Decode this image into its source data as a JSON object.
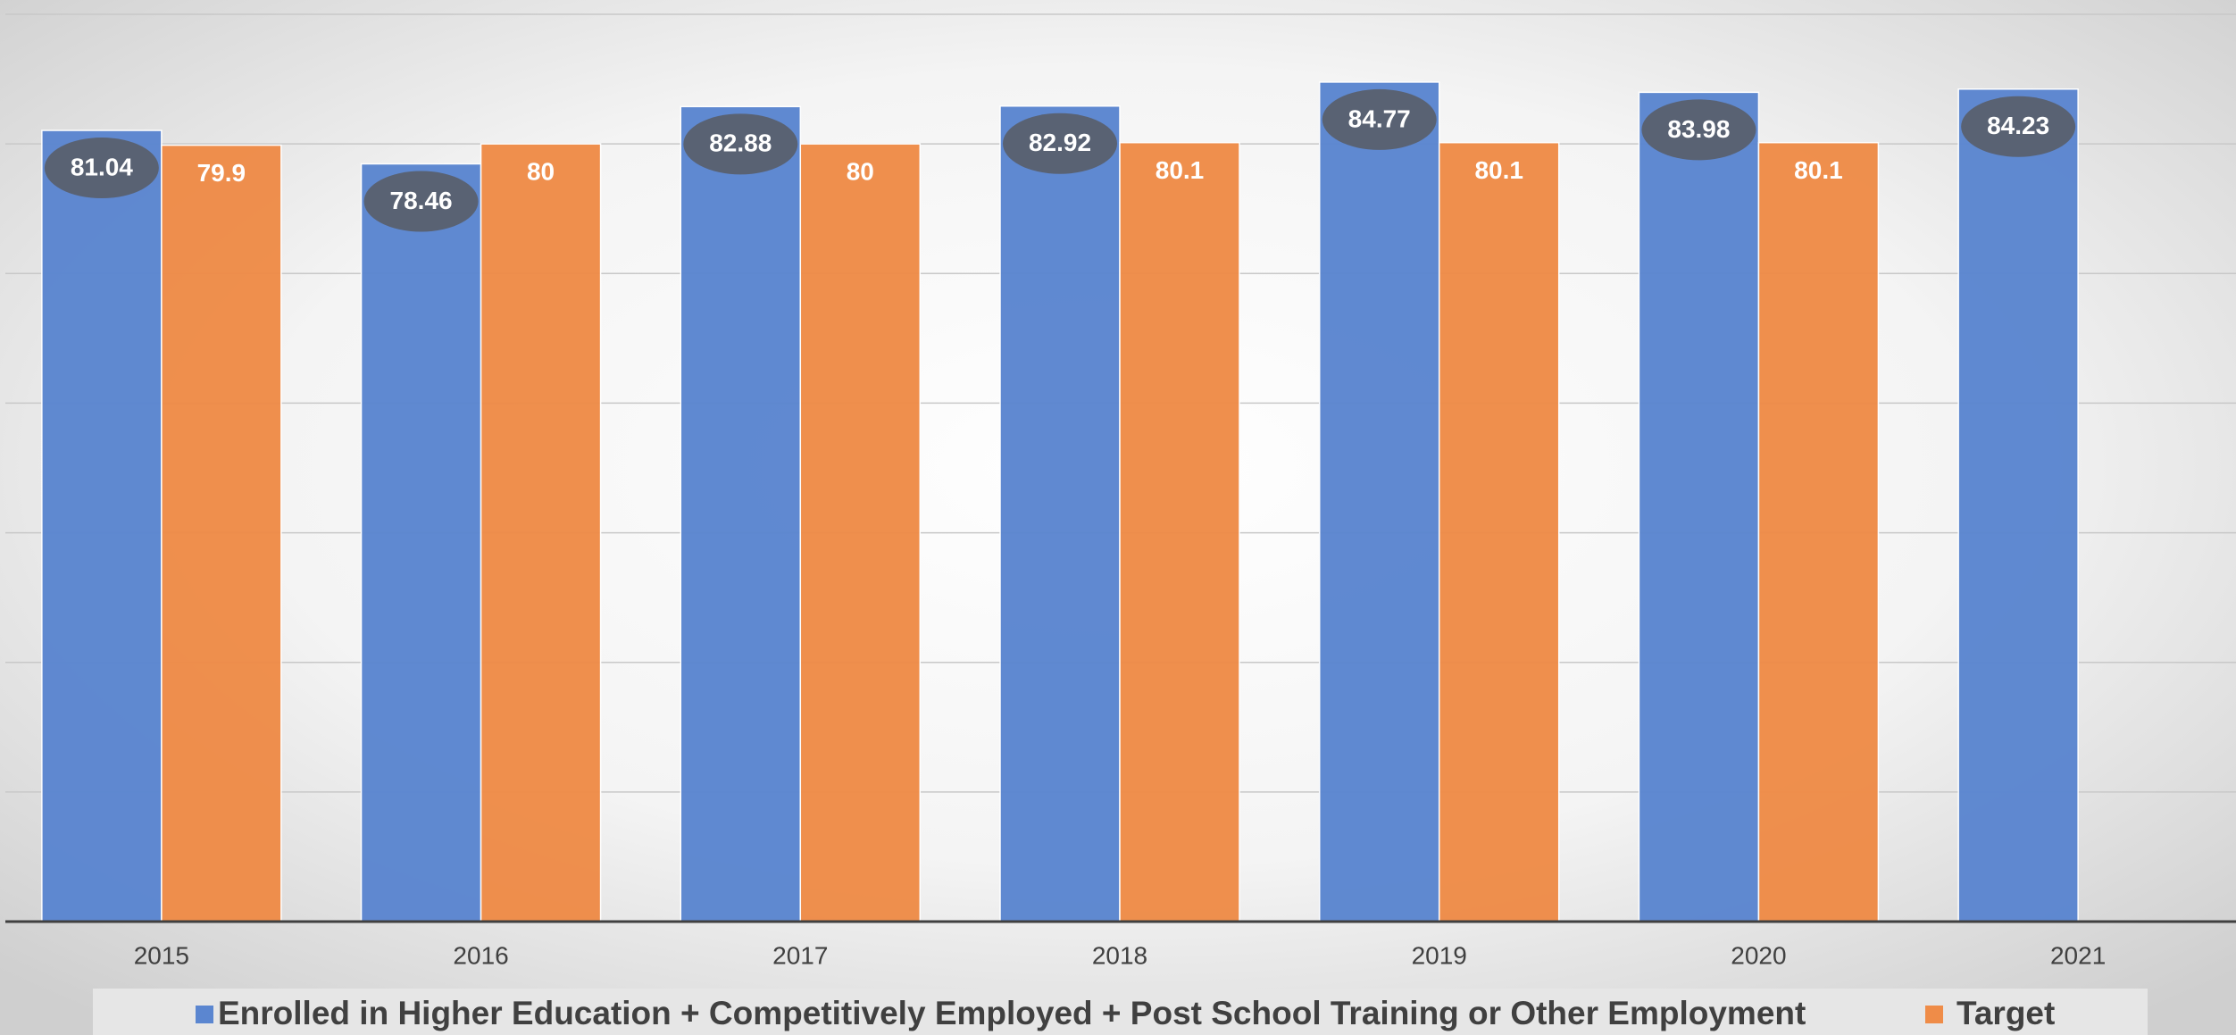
{
  "chart_data": {
    "type": "bar",
    "categories": [
      "2015",
      "2016",
      "2017",
      "2018",
      "2019",
      "2020",
      "2021"
    ],
    "series": [
      {
        "name": "Enrolled in Higher Education + Competitively Employed + Post School Training or Other Employment",
        "color": "#5b86d0",
        "values": [
          81.04,
          78.46,
          82.88,
          82.92,
          84.77,
          83.98,
          84.23
        ]
      },
      {
        "name": "Target",
        "color": "#ef8c48",
        "values": [
          79.9,
          80,
          80,
          80.1,
          80.1,
          80.1,
          null
        ]
      }
    ],
    "ylim": [
      20,
      90
    ],
    "yticks": [
      20,
      30,
      40,
      50,
      60,
      70,
      80,
      90
    ],
    "grid": true,
    "legend": "bottom"
  }
}
